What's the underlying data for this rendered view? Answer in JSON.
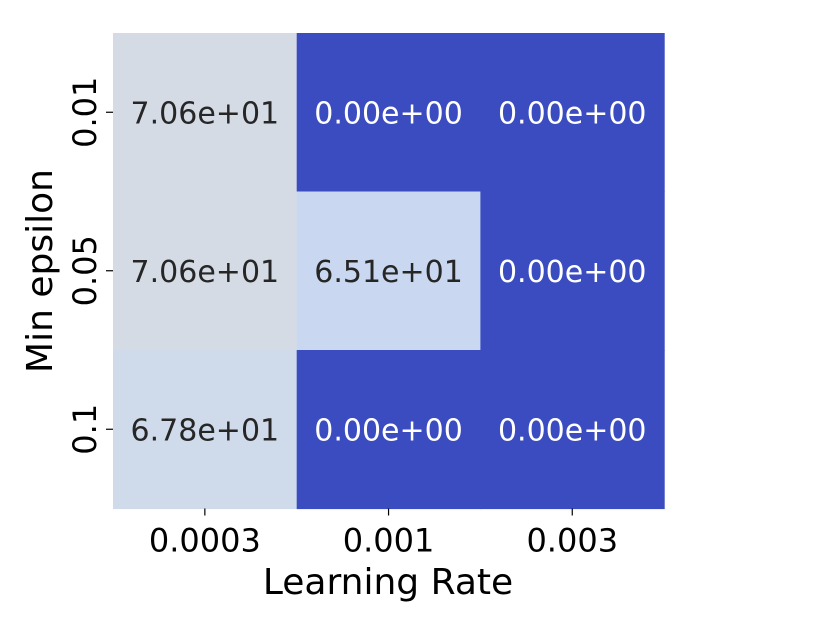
{
  "chart_data": {
    "type": "heatmap",
    "title": "",
    "xlabel": "Learning Rate",
    "ylabel": "Min epsilon",
    "x_categories": [
      "0.0003",
      "0.001",
      "0.003"
    ],
    "y_categories": [
      "0.01",
      "0.05",
      "0.1"
    ],
    "values": [
      [
        70.6,
        0.0,
        0.0
      ],
      [
        70.6,
        65.1,
        0.0
      ],
      [
        67.8,
        0.0,
        0.0
      ]
    ],
    "value_labels": [
      [
        "7.06e+01",
        "0.00e+00",
        "0.00e+00"
      ],
      [
        "7.06e+01",
        "6.51e+01",
        "0.00e+00"
      ],
      [
        "6.78e+01",
        "0.00e+00",
        "0.00e+00"
      ]
    ],
    "colormap": "coolwarm",
    "color_range": [
      0,
      141.2
    ],
    "colorbar": false,
    "grid": false,
    "colors": {
      "low": "#3b4cc0",
      "mid": "#dddddd",
      "label_dark": "#262626",
      "label_light": "#ffffff"
    }
  }
}
